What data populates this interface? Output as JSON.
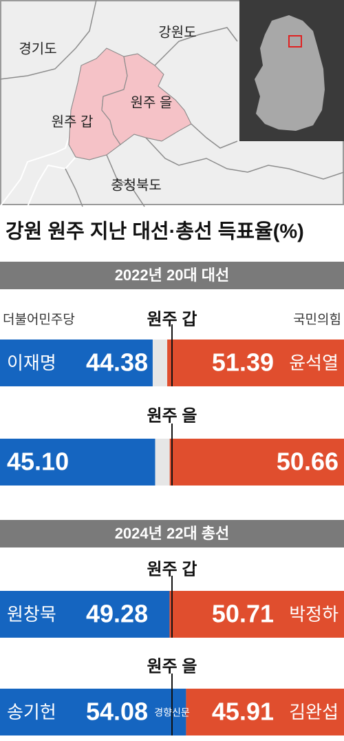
{
  "title": "강원 원주 지난 대선·총선 득표율(%)",
  "map": {
    "labels": [
      "경기도",
      "강원도",
      "원주 갑",
      "원주 을",
      "충청북도"
    ]
  },
  "credit": "경향신문",
  "chart_data": [
    {
      "type": "diverging-bar",
      "title": "2022년 20대 대선",
      "xlim": [
        0,
        100
      ],
      "categories": [
        "원주 갑",
        "원주 을"
      ],
      "series": [
        {
          "name": "더불어민주당",
          "color": "#1565c0",
          "candidates": [
            "이재명",
            null
          ],
          "values": [
            44.38,
            45.1
          ],
          "value_labels": [
            "44.38",
            "45.10"
          ]
        },
        {
          "name": "국민의힘",
          "color": "#e04e2e",
          "candidates": [
            "윤석열",
            null
          ],
          "values": [
            51.39,
            50.66
          ],
          "value_labels": [
            "51.39",
            "50.66"
          ]
        }
      ]
    },
    {
      "type": "diverging-bar",
      "title": "2024년 22대 총선",
      "xlim": [
        0,
        100
      ],
      "categories": [
        "원주 갑",
        "원주 을"
      ],
      "series": [
        {
          "color": "#1565c0",
          "candidates": [
            "원창묵",
            "송기헌"
          ],
          "values": [
            49.28,
            54.08
          ],
          "value_labels": [
            "49.28",
            "54.08"
          ]
        },
        {
          "color": "#e04e2e",
          "candidates": [
            "박정하",
            "김완섭"
          ],
          "values": [
            50.71,
            45.91
          ],
          "value_labels": [
            "50.71",
            "45.91"
          ]
        }
      ]
    }
  ]
}
